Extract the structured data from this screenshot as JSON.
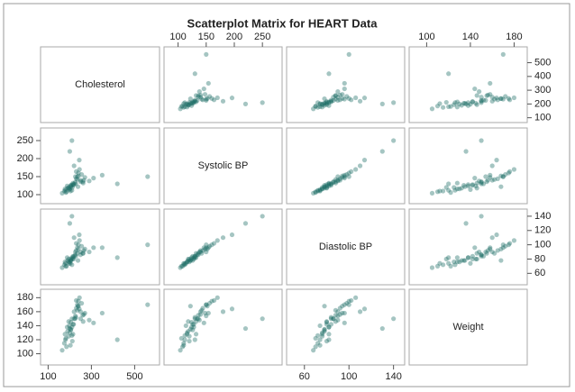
{
  "chart_data": {
    "type": "scatter-matrix",
    "title": "Scatterplot Matrix for HEART Data",
    "color": "#1f6f66",
    "variables": [
      {
        "name": "Cholesterol",
        "lim": [
          65,
          615
        ],
        "xticks": [
          100,
          300,
          500
        ],
        "yticks": [
          100,
          200,
          300,
          400,
          500
        ],
        "values": [
          220,
          190,
          250,
          205,
          180,
          235,
          210,
          260,
          195,
          230,
          175,
          240,
          215,
          200,
          270,
          185,
          225,
          245,
          205,
          290,
          165,
          215,
          235,
          198,
          255,
          212,
          228,
          182,
          310,
          220,
          205,
          240,
          195,
          265,
          210,
          230,
          188,
          250,
          218,
          203,
          244,
          226,
          178,
          262,
          350,
          560,
          210,
          420,
          200,
          238
        ]
      },
      {
        "name": "Systolic BP",
        "lim": [
          75,
          285
        ],
        "xticks": [
          100,
          150,
          200,
          250
        ],
        "yticks": [
          100,
          150,
          200,
          250
        ],
        "values": [
          130,
          118,
          140,
          124,
          112,
          150,
          128,
          136,
          120,
          144,
          110,
          160,
          126,
          116,
          148,
          108,
          134,
          170,
          122,
          138,
          104,
          132,
          142,
          114,
          156,
          120,
          130,
          106,
          146,
          180,
          126,
          152,
          118,
          140,
          112,
          164,
          124,
          136,
          128,
          110,
          196,
          150,
          116,
          132,
          154,
          150,
          250,
          130,
          220,
          122
        ]
      },
      {
        "name": "Diastolic BP",
        "lim": [
          44,
          150
        ],
        "xticks": [
          60,
          100,
          140
        ],
        "yticks": [
          60,
          80,
          100,
          120,
          140
        ],
        "values": [
          84,
          78,
          90,
          80,
          74,
          96,
          82,
          88,
          76,
          92,
          72,
          100,
          84,
          76,
          94,
          70,
          86,
          106,
          78,
          90,
          68,
          82,
          88,
          74,
          98,
          80,
          84,
          70,
          96,
          110,
          78,
          94,
          80,
          92,
          72,
          102,
          82,
          86,
          80,
          74,
          114,
          90,
          76,
          88,
          96,
          100,
          140,
          82,
          130,
          78
        ]
      },
      {
        "name": "Weight",
        "lim": [
          84,
          192
        ],
        "xticks": [
          100,
          140,
          180
        ],
        "yticks": [
          100,
          120,
          140,
          160,
          180
        ],
        "values": [
          150,
          132,
          160,
          145,
          120,
          170,
          138,
          155,
          125,
          165,
          115,
          175,
          142,
          130,
          158,
          110,
          150,
          180,
          135,
          148,
          105,
          128,
          162,
          140,
          172,
          118,
          152,
          122,
          144,
          160,
          134,
          168,
          146,
          156,
          126,
          176,
          138,
          150,
          142,
          112,
          164,
          154,
          128,
          146,
          158,
          170,
          150,
          120,
          136,
          168
        ]
      }
    ]
  }
}
